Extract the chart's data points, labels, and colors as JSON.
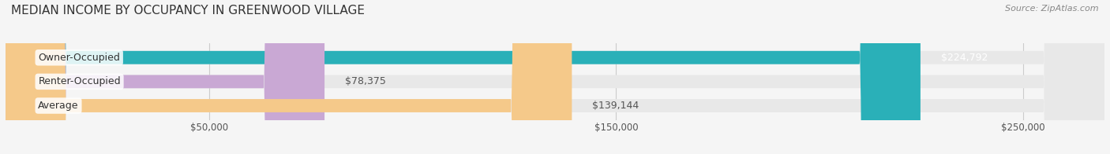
{
  "title": "MEDIAN INCOME BY OCCUPANCY IN GREENWOOD VILLAGE",
  "source": "Source: ZipAtlas.com",
  "categories": [
    "Owner-Occupied",
    "Renter-Occupied",
    "Average"
  ],
  "values": [
    224792,
    78375,
    139144
  ],
  "bar_colors": [
    "#2ab0b8",
    "#c9a8d4",
    "#f5c98a"
  ],
  "label_colors": [
    "#ffffff",
    "#555555",
    "#555555"
  ],
  "value_labels": [
    "$224,792",
    "$78,375",
    "$139,144"
  ],
  "x_ticks": [
    0,
    50000,
    150000,
    250000
  ],
  "x_tick_labels": [
    "",
    "$50,000",
    "$150,000",
    "$250,000"
  ],
  "xlim": [
    0,
    270000
  ],
  "background_color": "#f5f5f5",
  "bar_background_color": "#e8e8e8",
  "title_fontsize": 11,
  "source_fontsize": 8,
  "label_fontsize": 9,
  "value_fontsize": 9,
  "bar_height": 0.55
}
